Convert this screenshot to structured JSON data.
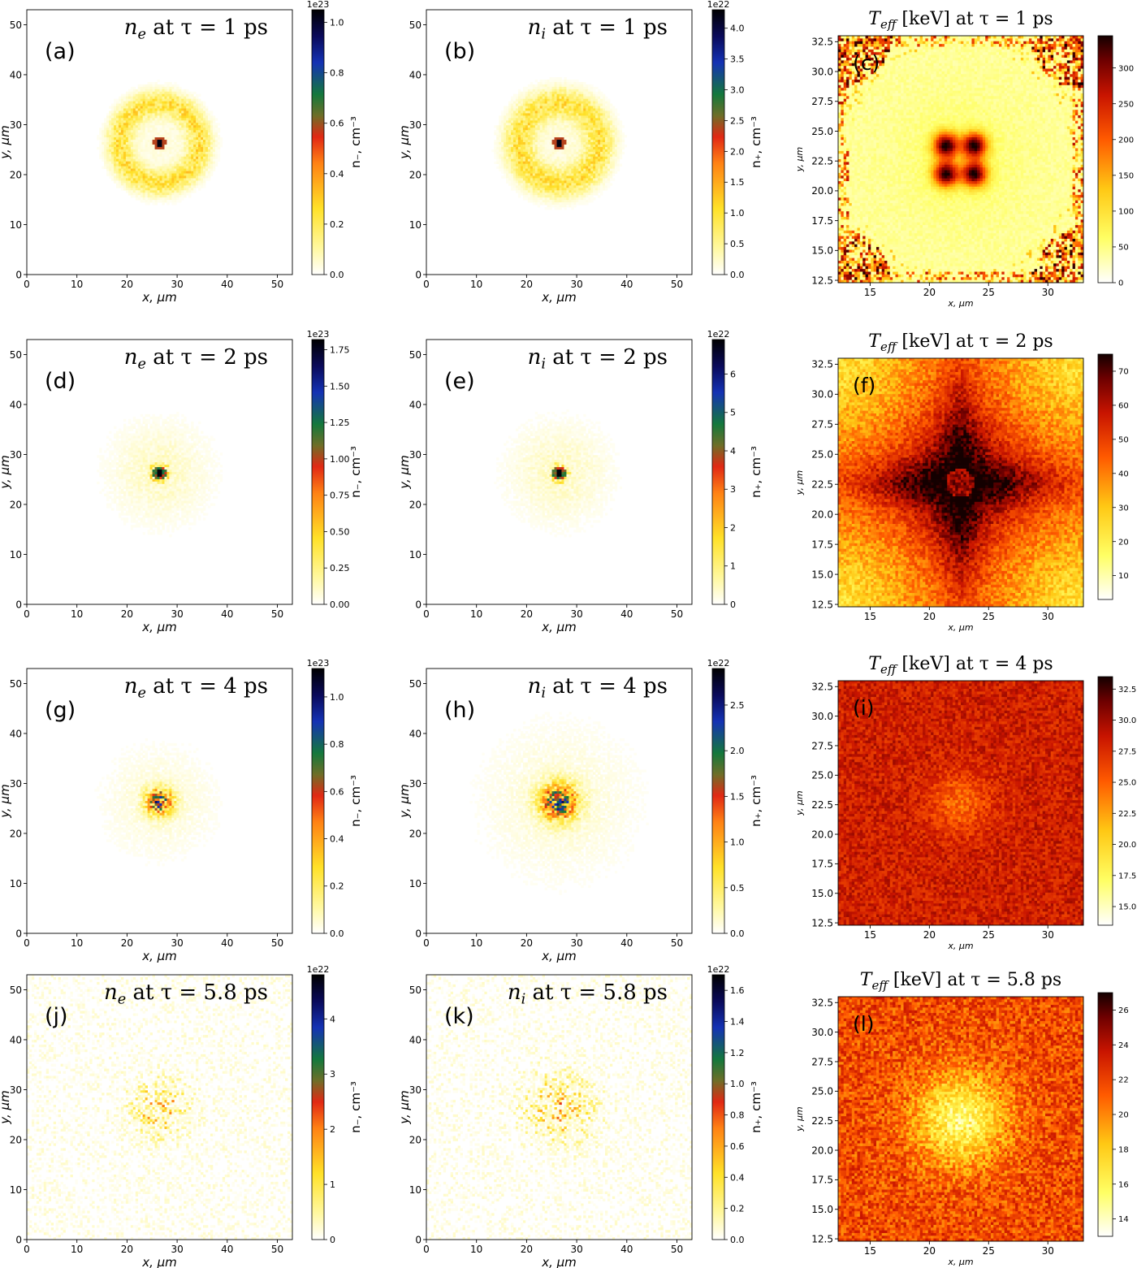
{
  "figure": {
    "background": "#ffffff"
  },
  "colors": {
    "frame": "#000000",
    "tick_text": "#000000"
  },
  "chart_data": [
    {
      "id": "a",
      "type": "heatmap",
      "panel_label": "(a)",
      "title": "n_e at τ = 1 ps",
      "title_parts": [
        "n",
        "e",
        " at τ = 1 ps"
      ],
      "xlabel": "x, μm",
      "ylabel": "y, μm",
      "xlim": [
        0,
        53
      ],
      "ylim": [
        0,
        53
      ],
      "xticks": [
        "0",
        "10",
        "20",
        "30",
        "40",
        "50"
      ],
      "yticks": [
        "0",
        "10",
        "20",
        "30",
        "40",
        "50"
      ],
      "colorbar": {
        "label": "n₋,  cm⁻³",
        "multiplier": "1e23",
        "range": [
          0,
          1.05
        ],
        "ticks": [
          "0.0",
          "0.2",
          "0.4",
          "0.6",
          "0.8",
          "1.0"
        ],
        "colormap": "gist_heat_r-like (white→yellow→red→green→blue→black)"
      },
      "pattern": {
        "kind": "ring_plus_core",
        "center": [
          26.5,
          26.3
        ],
        "ring_radius": 8,
        "ring_width": 2.5
      }
    },
    {
      "id": "b",
      "type": "heatmap",
      "panel_label": "(b)",
      "title": "n_i at τ = 1 ps",
      "title_parts": [
        "n",
        "i",
        " at τ = 1 ps"
      ],
      "xlabel": "x, μm",
      "ylabel": "y, μm",
      "xlim": [
        0,
        53
      ],
      "ylim": [
        0,
        53
      ],
      "xticks": [
        "0",
        "10",
        "20",
        "30",
        "40",
        "50"
      ],
      "yticks": [
        "0",
        "10",
        "20",
        "30",
        "40",
        "50"
      ],
      "colorbar": {
        "label": "n₊,  cm⁻³",
        "multiplier": "1e22",
        "range": [
          0,
          4.3
        ],
        "ticks": [
          "0.0",
          "0.5",
          "1.0",
          "1.5",
          "2.0",
          "2.5",
          "3.0",
          "3.5",
          "4.0"
        ],
        "colormap": "gist_heat_r-like"
      },
      "pattern": {
        "kind": "ring_plus_core",
        "center": [
          26.5,
          26.3
        ],
        "ring_radius": 8,
        "ring_width": 3
      }
    },
    {
      "id": "c",
      "type": "heatmap",
      "panel_label": "(c)",
      "title": "T_eff [keV] at τ = 1 ps",
      "title_parts": [
        "T",
        "eff",
        " [keV] at τ = 1 ps"
      ],
      "xlabel": "x, μm",
      "ylabel": "y, μm",
      "xlim": [
        12.3,
        33
      ],
      "ylim": [
        12.3,
        33
      ],
      "xticks": [
        "15",
        "20",
        "25",
        "30"
      ],
      "yticks": [
        "12.5",
        "15.0",
        "17.5",
        "20.0",
        "22.5",
        "25.0",
        "27.5",
        "30.0",
        "32.5"
      ],
      "colorbar": {
        "label": "",
        "multiplier": "",
        "range": [
          0,
          345
        ],
        "ticks": [
          "0",
          "50",
          "100",
          "150",
          "200",
          "250",
          "300"
        ],
        "colormap": "hot_r"
      },
      "pattern": {
        "kind": "four_lobes_hot_corners",
        "center": [
          22.6,
          22.6
        ]
      }
    },
    {
      "id": "d",
      "type": "heatmap",
      "panel_label": "(d)",
      "title": "n_e at τ = 2 ps",
      "title_parts": [
        "n",
        "e",
        " at τ = 2 ps"
      ],
      "xlabel": "x, μm",
      "ylabel": "y, μm",
      "xlim": [
        0,
        53
      ],
      "ylim": [
        0,
        53
      ],
      "xticks": [
        "0",
        "10",
        "20",
        "30",
        "40",
        "50"
      ],
      "yticks": [
        "0",
        "10",
        "20",
        "30",
        "40",
        "50"
      ],
      "colorbar": {
        "label": "n₋,  cm⁻³",
        "multiplier": "1e23",
        "range": [
          0,
          1.82
        ],
        "ticks": [
          "0.00",
          "0.25",
          "0.50",
          "0.75",
          "1.00",
          "1.25",
          "1.50",
          "1.75"
        ],
        "colormap": "gist_heat_r-like"
      },
      "pattern": {
        "kind": "core_halo",
        "center": [
          26.5,
          26.3
        ],
        "halo_radius": 9
      }
    },
    {
      "id": "e",
      "type": "heatmap",
      "panel_label": "(e)",
      "title": "n_i at τ = 2 ps",
      "title_parts": [
        "n",
        "i",
        " at τ = 2 ps"
      ],
      "xlabel": "x, μm",
      "ylabel": "y, μm",
      "xlim": [
        0,
        53
      ],
      "ylim": [
        0,
        53
      ],
      "xticks": [
        "0",
        "10",
        "20",
        "30",
        "40",
        "50"
      ],
      "yticks": [
        "0",
        "10",
        "20",
        "30",
        "40",
        "50"
      ],
      "colorbar": {
        "label": "n₊,  cm⁻³",
        "multiplier": "1e22",
        "range": [
          0,
          6.9
        ],
        "ticks": [
          "0",
          "1",
          "2",
          "3",
          "4",
          "5",
          "6"
        ],
        "colormap": "gist_heat_r-like"
      },
      "pattern": {
        "kind": "core_halo",
        "center": [
          26.5,
          26.3
        ],
        "halo_radius": 9
      }
    },
    {
      "id": "f",
      "type": "heatmap",
      "panel_label": "(f)",
      "title": "T_eff [keV] at τ = 2 ps",
      "title_parts": [
        "T",
        "eff",
        " [keV] at τ = 2 ps"
      ],
      "xlabel": "x, μm",
      "ylabel": "y, μm",
      "xlim": [
        12.3,
        33
      ],
      "ylim": [
        12.3,
        33
      ],
      "xticks": [
        "15",
        "20",
        "25",
        "30"
      ],
      "yticks": [
        "12.5",
        "15.0",
        "17.5",
        "20.0",
        "22.5",
        "25.0",
        "27.5",
        "30.0",
        "32.5"
      ],
      "colorbar": {
        "label": "",
        "multiplier": "",
        "range": [
          3,
          75
        ],
        "ticks": [
          "10",
          "20",
          "30",
          "40",
          "50",
          "60",
          "70"
        ],
        "colormap": "hot_r"
      },
      "pattern": {
        "kind": "diamond_cross",
        "center": [
          22.6,
          22.6
        ]
      }
    },
    {
      "id": "g",
      "type": "heatmap",
      "panel_label": "(g)",
      "title": "n_e at τ = 4 ps",
      "title_parts": [
        "n",
        "e",
        " at τ = 4 ps"
      ],
      "xlabel": "x, μm",
      "ylabel": "y, μm",
      "xlim": [
        0,
        53
      ],
      "ylim": [
        0,
        53
      ],
      "xticks": [
        "0",
        "10",
        "20",
        "30",
        "40",
        "50"
      ],
      "yticks": [
        "0",
        "10",
        "20",
        "30",
        "40",
        "50"
      ],
      "colorbar": {
        "label": "n₋,  cm⁻³",
        "multiplier": "1e23",
        "range": [
          0,
          1.12
        ],
        "ticks": [
          "0.0",
          "0.2",
          "0.4",
          "0.6",
          "0.8",
          "1.0"
        ],
        "colormap": "gist_heat_r-like"
      },
      "pattern": {
        "kind": "blob",
        "center": [
          26.5,
          26.3
        ],
        "sigma": 2.5
      }
    },
    {
      "id": "h",
      "type": "heatmap",
      "panel_label": "(h)",
      "title": "n_i at τ = 4 ps",
      "title_parts": [
        "n",
        "i",
        " at τ = 4 ps"
      ],
      "xlabel": "x, μm",
      "ylabel": "y, μm",
      "xlim": [
        0,
        53
      ],
      "ylim": [
        0,
        53
      ],
      "xticks": [
        "0",
        "10",
        "20",
        "30",
        "40",
        "50"
      ],
      "yticks": [
        "0",
        "10",
        "20",
        "30",
        "40",
        "50"
      ],
      "colorbar": {
        "label": "n₊,  cm⁻³",
        "multiplier": "1e22",
        "range": [
          0,
          2.9
        ],
        "ticks": [
          "0.0",
          "0.5",
          "1.0",
          "1.5",
          "2.0",
          "2.5"
        ],
        "colormap": "gist_heat_r-like"
      },
      "pattern": {
        "kind": "blob",
        "center": [
          26.5,
          26.3
        ],
        "sigma": 3.5
      }
    },
    {
      "id": "i",
      "type": "heatmap",
      "panel_label": "(i)",
      "title": "T_eff [keV] at τ = 4 ps",
      "title_parts": [
        "T",
        "eff",
        " [keV] at τ = 4 ps"
      ],
      "xlabel": "x, μm",
      "ylabel": "y, μm",
      "xlim": [
        12.3,
        33
      ],
      "ylim": [
        12.3,
        33
      ],
      "xticks": [
        "15",
        "20",
        "25",
        "30"
      ],
      "yticks": [
        "12.5",
        "15.0",
        "17.5",
        "20.0",
        "22.5",
        "25.0",
        "27.5",
        "30.0",
        "32.5"
      ],
      "colorbar": {
        "label": "",
        "multiplier": "",
        "range": [
          13.5,
          33.5
        ],
        "ticks": [
          "15.0",
          "17.5",
          "20.0",
          "22.5",
          "25.0",
          "27.5",
          "30.0",
          "32.5"
        ],
        "colormap": "hot_r"
      },
      "pattern": {
        "kind": "uniform_hot_center_spot",
        "center": [
          22.6,
          22.6
        ]
      }
    },
    {
      "id": "j",
      "type": "heatmap",
      "panel_label": "(j)",
      "title": "n_e at τ = 5.8 ps",
      "title_parts": [
        "n",
        "e",
        " at τ = 5.8 ps"
      ],
      "xlabel": "x, μm",
      "ylabel": "y, μm",
      "xlim": [
        0,
        53
      ],
      "ylim": [
        0,
        53
      ],
      "xticks": [
        "0",
        "10",
        "20",
        "30",
        "40",
        "50"
      ],
      "yticks": [
        "0",
        "10",
        "20",
        "30",
        "40",
        "50"
      ],
      "colorbar": {
        "label": "n₋,  cm⁻³",
        "multiplier": "1e22",
        "range": [
          0,
          4.8
        ],
        "ticks": [
          "0",
          "1",
          "2",
          "3",
          "4"
        ],
        "colormap": "gist_heat_r-like"
      },
      "pattern": {
        "kind": "broad_blob",
        "center": [
          26.5,
          26.3
        ],
        "sigma": 5
      }
    },
    {
      "id": "k",
      "type": "heatmap",
      "panel_label": "(k)",
      "title": "n_i at τ = 5.8 ps",
      "title_parts": [
        "n",
        "i",
        " at τ = 5.8 ps"
      ],
      "xlabel": "x, μm",
      "ylabel": "y, μm",
      "xlim": [
        0,
        53
      ],
      "ylim": [
        0,
        53
      ],
      "xticks": [
        "0",
        "10",
        "20",
        "30",
        "40",
        "50"
      ],
      "yticks": [
        "0",
        "10",
        "20",
        "30",
        "40",
        "50"
      ],
      "colorbar": {
        "label": "n₊,  cm⁻³",
        "multiplier": "1e22",
        "range": [
          0,
          1.7
        ],
        "ticks": [
          "0.0",
          "0.2",
          "0.4",
          "0.6",
          "0.8",
          "1.0",
          "1.2",
          "1.4",
          "1.6"
        ],
        "colormap": "gist_heat_r-like"
      },
      "pattern": {
        "kind": "broad_blob",
        "center": [
          26.5,
          26.3
        ],
        "sigma": 6
      }
    },
    {
      "id": "l",
      "type": "heatmap",
      "panel_label": "(l)",
      "title": "T_eff [keV] at τ = 5.8 ps",
      "title_parts": [
        "T",
        "eff",
        " [keV] at τ = 5.8 ps"
      ],
      "xlabel": "x, μm",
      "ylabel": "y, μm",
      "xlim": [
        12.3,
        33
      ],
      "ylim": [
        12.3,
        33
      ],
      "xticks": [
        "15",
        "20",
        "25",
        "30"
      ],
      "yticks": [
        "12.5",
        "15.0",
        "17.5",
        "20.0",
        "22.5",
        "25.0",
        "27.5",
        "30.0",
        "32.5"
      ],
      "colorbar": {
        "label": "",
        "multiplier": "",
        "range": [
          13,
          27
        ],
        "ticks": [
          "14",
          "16",
          "18",
          "20",
          "22",
          "24",
          "26"
        ],
        "colormap": "hot_r"
      },
      "pattern": {
        "kind": "cool_center",
        "center": [
          22.6,
          22.6
        ]
      }
    }
  ]
}
